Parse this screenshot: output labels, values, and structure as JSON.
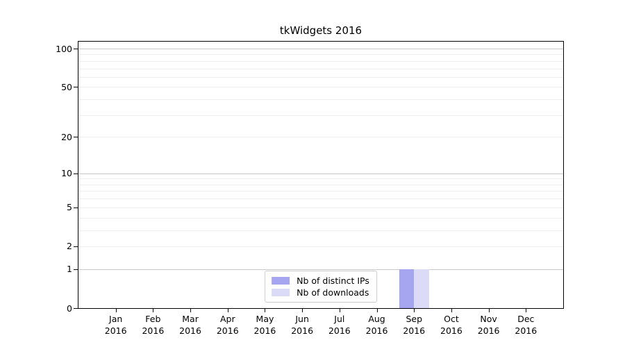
{
  "figure": {
    "background": "#ffffff"
  },
  "chart_data": {
    "type": "bar",
    "title": "tkWidgets 2016",
    "categories": [
      "Jan 2016",
      "Feb 2016",
      "Mar 2016",
      "Apr 2016",
      "May 2016",
      "Jun 2016",
      "Jul 2016",
      "Aug 2016",
      "Sep 2016",
      "Oct 2016",
      "Nov 2016",
      "Dec 2016"
    ],
    "series": [
      {
        "name": "Nb of distinct IPs",
        "color": "#a6a6f0",
        "values": [
          0,
          0,
          0,
          0,
          0,
          0,
          0,
          0,
          1,
          0,
          0,
          0
        ]
      },
      {
        "name": "Nb of downloads",
        "color": "#dbdbf8",
        "values": [
          0,
          0,
          0,
          0,
          0,
          0,
          0,
          0,
          1,
          0,
          0,
          0
        ]
      }
    ],
    "xlabel": "",
    "ylabel": "",
    "y_axis": {
      "scale": "log1p",
      "ylim": [
        0,
        113.3
      ],
      "ticks": [
        0,
        1,
        2,
        5,
        10,
        20,
        50,
        100
      ],
      "major_gridlines": [
        1,
        10,
        100
      ],
      "minor_gridlines": [
        2,
        3,
        4,
        5,
        6,
        7,
        8,
        9,
        20,
        30,
        40,
        50,
        60,
        70,
        80,
        90
      ]
    },
    "legend_position": "bottom-center",
    "grid": true,
    "bar_width_fraction": 0.4
  },
  "colors": {
    "major_grid": "#c9c9c9",
    "minor_grid": "#efefef",
    "axis": "#000000",
    "legend_border": "#cccccc",
    "legend_background": "#ffffff"
  }
}
